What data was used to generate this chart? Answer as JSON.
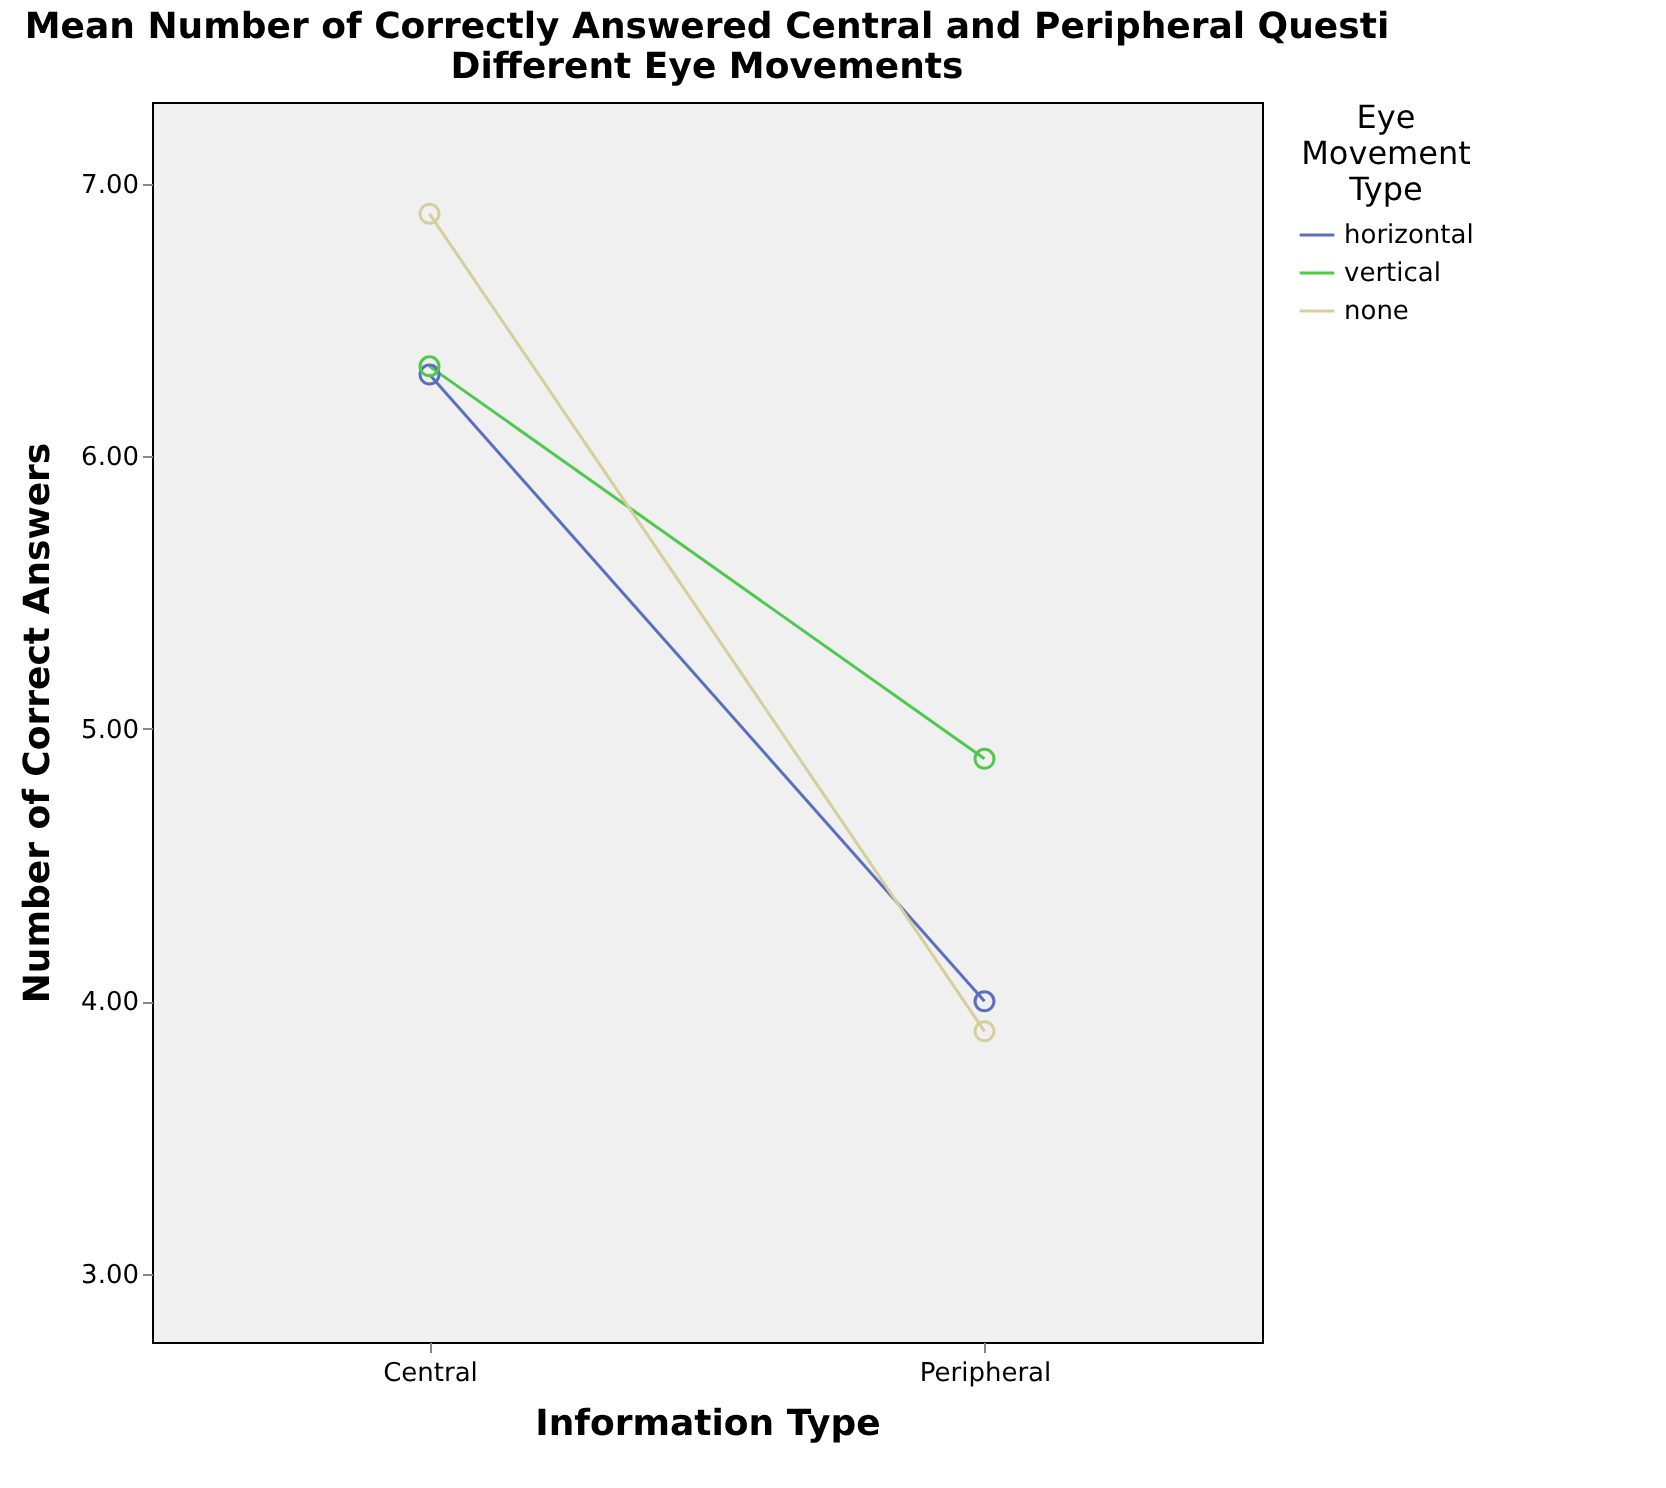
{
  "chart_data": {
    "type": "line",
    "title": [
      "Mean Number of Correctly Answered Central and Peripheral Questi",
      "Different Eye Movements"
    ],
    "xlabel": "Information Type",
    "ylabel": "Number of Correct Answers",
    "legend_title": "Eye Movement Type",
    "categories": [
      "Central",
      "Peripheral"
    ],
    "series": [
      {
        "name": "horizontal",
        "color": "#5b6fbf",
        "values": [
          6.3,
          4.0
        ]
      },
      {
        "name": "vertical",
        "color": "#4ec94e",
        "values": [
          6.33,
          4.89
        ]
      },
      {
        "name": "none",
        "color": "#d6cf9c",
        "values": [
          6.89,
          3.89
        ]
      }
    ],
    "ylim": [
      2.75,
      7.3
    ],
    "yticks": [
      {
        "value": 3,
        "label": "3.00"
      },
      {
        "value": 4,
        "label": "4.00"
      },
      {
        "value": 5,
        "label": "5.00"
      },
      {
        "value": 6,
        "label": "6.00"
      },
      {
        "value": 7,
        "label": "7.00"
      }
    ],
    "grid": false,
    "legend": "top right",
    "marker": "circle",
    "line_style": "solid"
  }
}
